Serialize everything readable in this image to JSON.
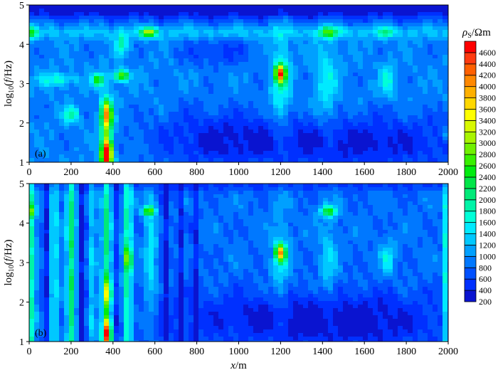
{
  "chart_data": [
    {
      "type": "heatmap",
      "panel_label": "(a)",
      "xlabel": "",
      "ylabel_prefix": "log",
      "ylabel_sub": "10",
      "ylabel_open": "(",
      "ylabel_var": "f",
      "ylabel_unit": "/Hz)",
      "xlim": [
        0,
        2000
      ],
      "ylim": [
        1,
        5
      ],
      "xticks": [
        "0",
        "200",
        "400",
        "600",
        "800",
        "1000",
        "1200",
        "1400",
        "1600",
        "1800",
        "2000"
      ],
      "yticks": [
        "1",
        "2",
        "3",
        "4",
        "5"
      ],
      "base": 950,
      "anomalies": [
        {
          "x": 1000,
          "y": 4.9,
          "sx": 2000,
          "sy": 0.2,
          "v": -750
        },
        {
          "x": 1000,
          "y": 4.3,
          "sx": 2000,
          "sy": 0.12,
          "v": 350
        },
        {
          "x": 0,
          "y": 4.3,
          "sx": 25,
          "sy": 0.12,
          "v": 1400
        },
        {
          "x": 570,
          "y": 4.3,
          "sx": 25,
          "sy": 0.08,
          "v": 2100
        },
        {
          "x": 1430,
          "y": 4.3,
          "sx": 35,
          "sy": 0.1,
          "v": 1300
        },
        {
          "x": 1700,
          "y": 4.3,
          "sx": 25,
          "sy": 0.1,
          "v": 900
        },
        {
          "x": 440,
          "y": 4.0,
          "sx": 20,
          "sy": 0.2,
          "v": 900
        },
        {
          "x": 370,
          "y": 1.2,
          "sx": 18,
          "sy": 0.25,
          "v": 3500
        },
        {
          "x": 370,
          "y": 2.2,
          "sx": 18,
          "sy": 0.25,
          "v": 2300
        },
        {
          "x": 370,
          "y": 1.7,
          "sx": 22,
          "sy": 0.7,
          "v": 1200
        },
        {
          "x": 440,
          "y": 3.2,
          "sx": 25,
          "sy": 0.1,
          "v": 2000
        },
        {
          "x": 330,
          "y": 3.1,
          "sx": 20,
          "sy": 0.12,
          "v": 1600
        },
        {
          "x": 200,
          "y": 2.2,
          "sx": 25,
          "sy": 0.15,
          "v": 1000
        },
        {
          "x": 130,
          "y": 3.1,
          "sx": 60,
          "sy": 0.12,
          "v": 800
        },
        {
          "x": 1200,
          "y": 3.25,
          "sx": 18,
          "sy": 0.15,
          "v": 2900
        },
        {
          "x": 1200,
          "y": 3.0,
          "sx": 30,
          "sy": 0.9,
          "v": 800
        },
        {
          "x": 1420,
          "y": 3.0,
          "sx": 35,
          "sy": 0.8,
          "v": 600
        },
        {
          "x": 1710,
          "y": 3.1,
          "sx": 25,
          "sy": 0.3,
          "v": 700
        },
        {
          "x": 1600,
          "y": 1.5,
          "sx": 400,
          "sy": 0.5,
          "v": -600
        },
        {
          "x": 900,
          "y": 1.6,
          "sx": 250,
          "sy": 0.5,
          "v": -500
        },
        {
          "x": 900,
          "y": 3.8,
          "sx": 120,
          "sy": 0.25,
          "v": -400
        },
        {
          "x": 2000,
          "y": 1.7,
          "sx": 20,
          "sy": 0.1,
          "v": 600
        }
      ]
    },
    {
      "type": "heatmap",
      "panel_label": "(b)",
      "xlabel_var": "x",
      "xlabel_unit": "/m",
      "ylabel_prefix": "log",
      "ylabel_sub": "10",
      "ylabel_open": "(",
      "ylabel_var": "f",
      "ylabel_unit": "/Hz)",
      "xlim": [
        0,
        2000
      ],
      "ylim": [
        1,
        5
      ],
      "xticks": [
        "0",
        "200",
        "400",
        "600",
        "800",
        "1000",
        "1200",
        "1400",
        "1600",
        "1800",
        "2000"
      ],
      "yticks": [
        "1",
        "2",
        "3",
        "4",
        "5"
      ],
      "base": 850,
      "anomalies": [
        {
          "x": 1000,
          "y": 4.95,
          "sx": 2000,
          "sy": 0.1,
          "v": -300
        },
        {
          "x": 10,
          "y": 3,
          "sx": 15,
          "sy": 5,
          "v": 1000
        },
        {
          "x": 0,
          "y": 4.3,
          "sx": 15,
          "sy": 0.1,
          "v": 1500
        },
        {
          "x": 120,
          "y": 3,
          "sx": 15,
          "sy": 5,
          "v": 700
        },
        {
          "x": 200,
          "y": 3,
          "sx": 15,
          "sy": 5,
          "v": 1300
        },
        {
          "x": 80,
          "y": 3,
          "sx": 10,
          "sy": 5,
          "v": -500
        },
        {
          "x": 255,
          "y": 3,
          "sx": 12,
          "sy": 5,
          "v": -600
        },
        {
          "x": 300,
          "y": 3,
          "sx": 15,
          "sy": 5,
          "v": 500
        },
        {
          "x": 370,
          "y": 3,
          "sx": 15,
          "sy": 5,
          "v": 1200
        },
        {
          "x": 370,
          "y": 1.2,
          "sx": 15,
          "sy": 0.25,
          "v": 3000
        },
        {
          "x": 370,
          "y": 2.2,
          "sx": 15,
          "sy": 0.25,
          "v": 1500
        },
        {
          "x": 420,
          "y": 3,
          "sx": 10,
          "sy": 5,
          "v": -300
        },
        {
          "x": 470,
          "y": 3,
          "sx": 15,
          "sy": 5,
          "v": 1100
        },
        {
          "x": 470,
          "y": 3.1,
          "sx": 15,
          "sy": 0.2,
          "v": 1200
        },
        {
          "x": 580,
          "y": 3.3,
          "sx": 20,
          "sy": 1.2,
          "v": 700
        },
        {
          "x": 570,
          "y": 4.3,
          "sx": 20,
          "sy": 0.08,
          "v": 1800
        },
        {
          "x": 650,
          "y": 3,
          "sx": 12,
          "sy": 5,
          "v": -500
        },
        {
          "x": 720,
          "y": 3,
          "sx": 10,
          "sy": 5,
          "v": -500
        },
        {
          "x": 790,
          "y": 3,
          "sx": 10,
          "sy": 5,
          "v": -500
        },
        {
          "x": 1100,
          "y": 1.6,
          "sx": 400,
          "sy": 0.5,
          "v": -400
        },
        {
          "x": 1200,
          "y": 3.25,
          "sx": 18,
          "sy": 0.15,
          "v": 2600
        },
        {
          "x": 1200,
          "y": 3.0,
          "sx": 30,
          "sy": 0.9,
          "v": 600
        },
        {
          "x": 1430,
          "y": 4.3,
          "sx": 30,
          "sy": 0.1,
          "v": 1400
        },
        {
          "x": 1430,
          "y": 3.0,
          "sx": 30,
          "sy": 0.9,
          "v": 500
        },
        {
          "x": 1710,
          "y": 3.1,
          "sx": 25,
          "sy": 0.3,
          "v": 700
        },
        {
          "x": 1600,
          "y": 1.5,
          "sx": 300,
          "sy": 0.5,
          "v": -450
        },
        {
          "x": 1990,
          "y": 3,
          "sx": 8,
          "sy": 5,
          "v": 900
        }
      ]
    }
  ],
  "colorbar": {
    "title_var": "ρ",
    "title_sub": "S",
    "title_unit": "/Ωm",
    "levels": [
      "4600",
      "4400",
      "4200",
      "4000",
      "3800",
      "3600",
      "3400",
      "3200",
      "3000",
      "2800",
      "2600",
      "2400",
      "2200",
      "2000",
      "1800",
      "1600",
      "1400",
      "1200",
      "1000",
      "800",
      "600",
      "400",
      "200"
    ],
    "colors": [
      "#0a14d0",
      "#0030ff",
      "#0050ff",
      "#0078ff",
      "#00a0ff",
      "#00c8ff",
      "#00eaff",
      "#00ffd8",
      "#00f4a8",
      "#00ea78",
      "#00e648",
      "#00ec10",
      "#38f000",
      "#70f000",
      "#a8f400",
      "#d8f800",
      "#ffff00",
      "#ffd800",
      "#ffb000",
      "#ff8800",
      "#ff6000",
      "#ff3a10",
      "#ff0000"
    ]
  }
}
